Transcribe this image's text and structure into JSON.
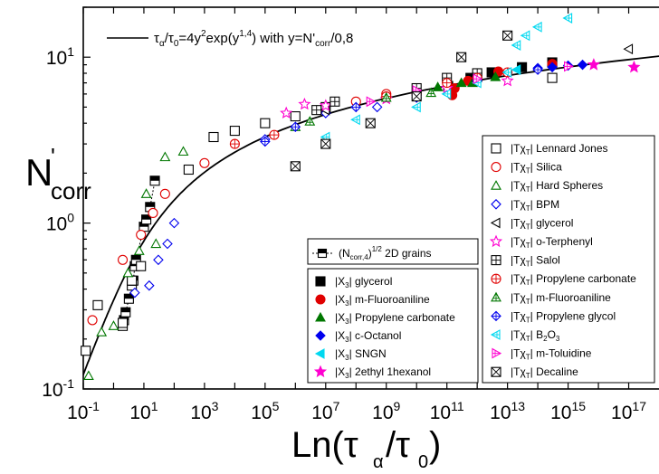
{
  "chart_data": {
    "type": "scatter",
    "title": "",
    "xlabel": "Ln(τα/τ0)",
    "ylabel": "N'corr",
    "x_scale": "log",
    "y_scale": "log",
    "xlim": [
      0.1,
      1e+18
    ],
    "ylim": [
      0.1,
      20
    ],
    "x_ticks": [
      {
        "base": "10",
        "exp": "-1",
        "value": 0.1
      },
      {
        "base": "10",
        "exp": "1",
        "value": 10
      },
      {
        "base": "10",
        "exp": "3",
        "value": 1000
      },
      {
        "base": "10",
        "exp": "5",
        "value": 100000
      },
      {
        "base": "10",
        "exp": "7",
        "value": 10000000.0
      },
      {
        "base": "10",
        "exp": "9",
        "value": 1000000000.0
      },
      {
        "base": "10",
        "exp": "11",
        "value": 100000000000.0
      },
      {
        "base": "10",
        "exp": "13",
        "value": 10000000000000.0
      },
      {
        "base": "10",
        "exp": "15",
        "value": 1000000000000000.0
      },
      {
        "base": "10",
        "exp": "17",
        "value": 1e+17
      }
    ],
    "y_ticks": [
      {
        "base": "10",
        "exp": "-1",
        "value": 0.1
      },
      {
        "base": "10",
        "exp": "0",
        "value": 1
      },
      {
        "base": "10",
        "exp": "1",
        "value": 10
      }
    ],
    "fit_label": "τα/τ0=4y²exp(y1,4) with y=N'corr/0,8",
    "fit_curve": {
      "formula": "ln(τα/τ0) = 4y²exp(y^1.4), y = N'corr/0.8"
    },
    "legend_top_entry": "(Ncorr,4)1/2 2D grains",
    "legend_left": [
      {
        "label": "|X3| glycerol",
        "marker": "square-filled",
        "color": "#000000"
      },
      {
        "label": "|X3| m-Fluoroaniline",
        "marker": "circle-filled",
        "color": "#e00000"
      },
      {
        "label": "|X3| Propylene carbonate",
        "marker": "triangle-filled",
        "color": "#007700"
      },
      {
        "label": "|X3| c-Octanol",
        "marker": "diamond-filled",
        "color": "#0000ee"
      },
      {
        "label": "|X3| SNGN",
        "marker": "triangle-left-filled",
        "color": "#00d8f0"
      },
      {
        "label": "|X3| 2ethyl 1hexanol",
        "marker": "star-filled",
        "color": "#ff00d0"
      }
    ],
    "legend_right": [
      {
        "label": "|TχT| Lennard Jones",
        "marker": "square-open",
        "color": "#000000"
      },
      {
        "label": "|TχT| Silica",
        "marker": "circle-open",
        "color": "#e00000"
      },
      {
        "label": "|TχT| Hard Spheres",
        "marker": "triangle-open",
        "color": "#007700"
      },
      {
        "label": "|TχT| BPM",
        "marker": "diamond-open",
        "color": "#0000ee"
      },
      {
        "label": "|TχT| glycerol",
        "marker": "triangle-left-open",
        "color": "#000000"
      },
      {
        "label": "|TχT| o-Terphenyl",
        "marker": "star-open",
        "color": "#ff00d0"
      },
      {
        "label": "|TχT| Salol",
        "marker": "square-plus",
        "color": "#000000"
      },
      {
        "label": "|TχT| Propylene carbonate",
        "marker": "circle-plus",
        "color": "#e00000"
      },
      {
        "label": "|TχT| m-Fluoroaniline",
        "marker": "triangle-plus",
        "color": "#007700"
      },
      {
        "label": "|TχT| Propylene glycol",
        "marker": "diamond-plus",
        "color": "#0000ee"
      },
      {
        "label": "|TχT| B2O3",
        "marker": "triangle-left-plus",
        "color": "#00d8f0"
      },
      {
        "label": "|TχT| m-Toluidine",
        "marker": "triangle-right-plus",
        "color": "#ff00d0"
      },
      {
        "label": "|TχT| Decaline",
        "marker": "square-x",
        "color": "#000000"
      }
    ],
    "series": [
      {
        "name": "(Ncorr,4)1/2 2D grains",
        "marker": "square-half",
        "color": "#000000",
        "points": [
          [
            2,
            0.24
          ],
          [
            2.2,
            0.26
          ],
          [
            2.5,
            0.29
          ],
          [
            3.2,
            0.35
          ],
          [
            4,
            0.42
          ],
          [
            4.5,
            0.45
          ],
          [
            5,
            0.55
          ],
          [
            5.5,
            0.6
          ],
          [
            10,
            0.95
          ],
          [
            12,
            1.05
          ],
          [
            16,
            1.25
          ],
          [
            23,
            1.8
          ]
        ]
      },
      {
        "name": "|X3| glycerol",
        "marker": "square-filled",
        "color": "#000000",
        "points": [
          [
            110000000000.0,
            6.7
          ],
          [
            600000000000.0,
            7.5
          ],
          [
            3000000000000.0,
            8.1
          ],
          [
            30000000000000.0,
            8.7
          ],
          [
            300000000000000.0,
            9.3
          ]
        ]
      },
      {
        "name": "|X3| m-Fluoroaniline",
        "marker": "circle-filled",
        "color": "#e00000",
        "points": [
          [
            150000000000.0,
            5.9
          ],
          [
            180000000000.0,
            6.5
          ],
          [
            500000000000.0,
            7.2
          ],
          [
            5000000000000.0,
            8.2
          ],
          [
            300000000000000.0,
            9.1
          ]
        ]
      },
      {
        "name": "|X3| Propylene carbonate",
        "marker": "triangle-filled",
        "color": "#007700",
        "points": [
          [
            50000000000.0,
            6.6
          ],
          [
            300000000000.0,
            7.0
          ],
          [
            700000000000.0,
            7.0
          ],
          [
            4000000000000.0,
            7.6
          ]
        ]
      },
      {
        "name": "|X3| c-Octanol",
        "marker": "diamond-filled",
        "color": "#0000ee",
        "points": [
          [
            100000000000000.0,
            8.6
          ],
          [
            300000000000000.0,
            8.7
          ],
          [
            1000000000000000.0,
            8.9
          ],
          [
            3000000000000000.0,
            9.0
          ]
        ]
      },
      {
        "name": "|X3| SNGN",
        "marker": "triangle-left-filled",
        "color": "#00d8f0",
        "points": [
          [
            20000000000000.0,
            8.4
          ]
        ]
      },
      {
        "name": "|X3| 2ethyl 1hexanol",
        "marker": "star-filled",
        "color": "#ff00d0",
        "points": [
          [
            7000000000000000.0,
            9.0
          ],
          [
            1.5e+17,
            8.7
          ]
        ]
      },
      {
        "name": "|TχT| Lennard Jones",
        "marker": "square-open",
        "color": "#000000",
        "points": [
          [
            0.12,
            0.17
          ],
          [
            0.3,
            0.32
          ],
          [
            2,
            0.25
          ],
          [
            4,
            0.45
          ],
          [
            8,
            0.55
          ],
          [
            300,
            2.1
          ],
          [
            2000,
            3.3
          ],
          [
            10000,
            3.6
          ],
          [
            100000.0,
            4.0
          ],
          [
            1000000.0,
            4.4
          ],
          [
            10000000.0,
            5.0
          ],
          [
            1000000000000.0,
            7.6
          ],
          [
            300000000000000.0,
            7.5
          ]
        ]
      },
      {
        "name": "|TχT| Silica",
        "marker": "circle-open",
        "color": "#e00000",
        "points": [
          [
            0.2,
            0.26
          ],
          [
            2,
            0.6
          ],
          [
            8,
            0.85
          ],
          [
            20,
            1.15
          ],
          [
            50,
            1.5
          ],
          [
            1000,
            2.3
          ],
          [
            100000000.0,
            5.4
          ],
          [
            1000000000.0,
            6.0
          ],
          [
            10000000000.0,
            6.0
          ]
        ]
      },
      {
        "name": "|TχT| Hard Spheres",
        "marker": "triangle-open",
        "color": "#007700",
        "points": [
          [
            0.15,
            0.12
          ],
          [
            0.4,
            0.22
          ],
          [
            1,
            0.24
          ],
          [
            3,
            0.5
          ],
          [
            7,
            0.68
          ],
          [
            12,
            1.5
          ],
          [
            25,
            0.75
          ],
          [
            50,
            2.5
          ],
          [
            200,
            2.7
          ],
          [
            1000000.0,
            3.8
          ]
        ]
      },
      {
        "name": "|TχT| BPM",
        "marker": "diamond-open",
        "color": "#0000ee",
        "points": [
          [
            5,
            0.38
          ],
          [
            15,
            0.42
          ],
          [
            30,
            0.6
          ],
          [
            60,
            0.75
          ],
          [
            100,
            1.0
          ],
          [
            100000.0,
            3.2
          ],
          [
            10000000.0,
            4.6
          ],
          [
            500000000.0,
            5.0
          ],
          [
            10000000000.0,
            5.7
          ]
        ]
      },
      {
        "name": "|TχT| glycerol",
        "marker": "triangle-left-open",
        "color": "#000000",
        "points": [
          [
            10000000.0,
            4.8
          ],
          [
            1e+17,
            11.2
          ]
        ]
      },
      {
        "name": "|TχT| o-Terphenyl",
        "marker": "star-open",
        "color": "#ff00d0",
        "points": [
          [
            500000.0,
            4.6
          ],
          [
            2000000.0,
            5.2
          ],
          [
            10000000.0,
            5.1
          ],
          [
            1000000000.0,
            5.6
          ],
          [
            100000000000.0,
            6.5
          ],
          [
            10000000000000.0,
            7.2
          ]
        ]
      },
      {
        "name": "|TχT| Salol",
        "marker": "square-plus",
        "color": "#000000",
        "points": [
          [
            5000000.0,
            4.8
          ],
          [
            20000000.0,
            5.4
          ],
          [
            10000000000.0,
            6.5
          ],
          [
            100000000000.0,
            7.5
          ],
          [
            1000000000000.0,
            8.0
          ]
        ]
      },
      {
        "name": "|TχT| Propylene carbonate",
        "marker": "circle-plus",
        "color": "#e00000",
        "points": [
          [
            10000.0,
            3.0
          ],
          [
            200000.0,
            3.4
          ],
          [
            1000000000.0,
            5.8
          ],
          [
            100000000000.0,
            7.0
          ],
          [
            1000000000000.0,
            7.5
          ],
          [
            10000000000000.0,
            8.1
          ]
        ]
      },
      {
        "name": "|TχT| m-Fluoroaniline",
        "marker": "triangle-plus",
        "color": "#007700",
        "points": [
          [
            3000000.0,
            4.1
          ],
          [
            1000000000.0,
            5.7
          ],
          [
            30000000000.0,
            6.1
          ]
        ]
      },
      {
        "name": "|TχT| Propylene glycol",
        "marker": "diamond-plus",
        "color": "#0000ee",
        "points": [
          [
            100000.0,
            3.1
          ],
          [
            1000000.0,
            3.8
          ],
          [
            100000000.0,
            5.0
          ],
          [
            10000000000.0,
            5.9
          ],
          [
            1000000000000.0,
            7.2
          ],
          [
            100000000000000.0,
            8.4
          ]
        ]
      },
      {
        "name": "|TχT| B2O3",
        "marker": "triangle-left-plus",
        "color": "#00d8f0",
        "points": [
          [
            10000000.0,
            3.3
          ],
          [
            100000000.0,
            4.2
          ],
          [
            10000000000.0,
            5.0
          ],
          [
            100000000000.0,
            6.0
          ],
          [
            1000000000000.0,
            7.0
          ],
          [
            10000000000000.0,
            8.1
          ],
          [
            20000000000000.0,
            11.8
          ],
          [
            40000000000000.0,
            13.5
          ],
          [
            100000000000000.0,
            15.2
          ],
          [
            1000000000000000.0,
            17.2
          ]
        ]
      },
      {
        "name": "|TχT| m-Toluidine",
        "marker": "triangle-right-plus",
        "color": "#ff00d0",
        "points": [
          [
            300000000.0,
            5.4
          ],
          [
            10000000000.0,
            6.3
          ],
          [
            1000000000000.0,
            7.4
          ],
          [
            1000000000000000.0,
            8.8
          ]
        ]
      },
      {
        "name": "|TχT| Decaline",
        "marker": "square-x",
        "color": "#000000",
        "points": [
          [
            1000000.0,
            2.2
          ],
          [
            10000000.0,
            3.0
          ],
          [
            300000000.0,
            4.0
          ],
          [
            10000000000.0,
            5.8
          ],
          [
            300000000000.0,
            10.0
          ],
          [
            10000000000000.0,
            13.5
          ]
        ]
      }
    ]
  }
}
